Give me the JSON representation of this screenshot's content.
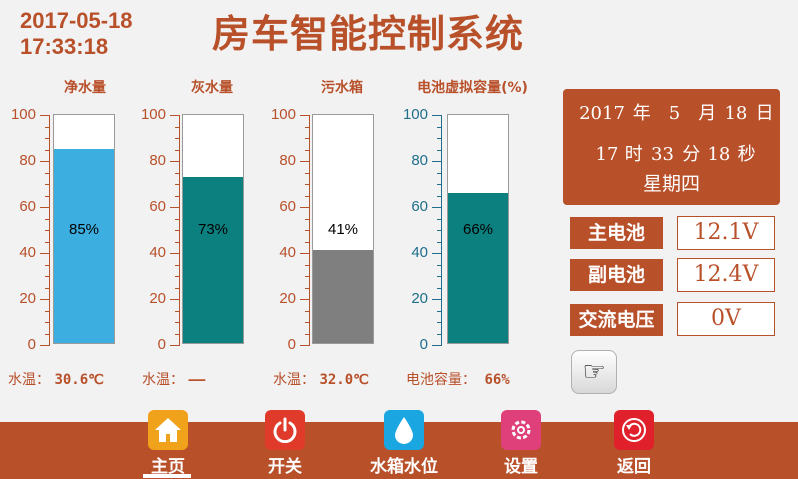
{
  "header": {
    "date": "2017-05-18",
    "time": "17:33:18",
    "title": "房车智能控制系统"
  },
  "gauges": [
    {
      "label": "净水量",
      "value": 85,
      "value_text": "85%",
      "fill_color": "#3daee0",
      "axis_color": "#b8502a",
      "bottom_label": "水温：",
      "bottom_value": "30.6℃",
      "ticks": [
        "100",
        "80",
        "60",
        "40",
        "20",
        "0"
      ]
    },
    {
      "label": "灰水量",
      "value": 73,
      "value_text": "73%",
      "fill_color": "#0c7f7f",
      "axis_color": "#b8502a",
      "bottom_label": "水温：",
      "bottom_value": "——",
      "ticks": [
        "100",
        "80",
        "60",
        "40",
        "20",
        "0"
      ]
    },
    {
      "label": "污水箱",
      "value": 41,
      "value_text": "41%",
      "fill_color": "#7f7f7f",
      "axis_color": "#b8502a",
      "bottom_label": "水温：",
      "bottom_value": "32.0℃",
      "ticks": [
        "100",
        "80",
        "60",
        "40",
        "20",
        "0"
      ]
    },
    {
      "label": "电池虚拟容量(%)",
      "value": 66,
      "value_text": "66%",
      "fill_color": "#0c7f7f",
      "axis_color": "#1f6e8c",
      "bottom_label": "电池容量：",
      "bottom_value": "66%",
      "ticks": [
        "100",
        "80",
        "60",
        "40",
        "20",
        "0"
      ]
    }
  ],
  "clock": {
    "year": "2017",
    "year_unit": "年",
    "month": "5",
    "month_unit": "月",
    "day": "18",
    "day_unit": "日",
    "hour": "17",
    "hour_unit": "时",
    "minute": "33",
    "minute_unit": "分",
    "second": "18",
    "second_unit": "秒",
    "weekday": "星期四"
  },
  "battery": [
    {
      "label": "主电池",
      "value": "12.1V"
    },
    {
      "label": "副电池",
      "value": "12.4V"
    },
    {
      "label": "交流电压",
      "value": "0V"
    }
  ],
  "hand_button": {
    "icon": "pointing-hand-icon",
    "glyph": "☞"
  },
  "nav": [
    {
      "label": "主页",
      "icon": "home-icon",
      "color": "#f0a31a"
    },
    {
      "label": "开关",
      "icon": "power-icon",
      "color": "#e03a2a"
    },
    {
      "label": "水箱水位",
      "icon": "water-drop-icon",
      "color": "#1aa6e0"
    },
    {
      "label": "设置",
      "icon": "gear-icon",
      "color": "#e0407a"
    },
    {
      "label": "返回",
      "icon": "return-icon",
      "color": "#e0202a"
    }
  ]
}
